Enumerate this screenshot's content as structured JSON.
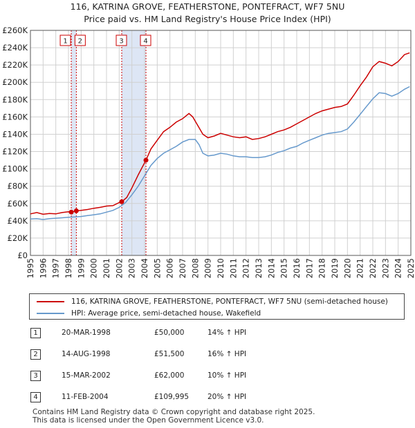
{
  "title_line1": "116, KATRINA GROVE, FEATHERSTONE, PONTEFRACT, WF7 5NU",
  "title_line2": "Price paid vs. HM Land Registry's House Price Index (HPI)",
  "colors": {
    "property": "#cc0000",
    "hpi": "#6699cc",
    "shade": "#dde6f5",
    "marker_line": "#cc0000"
  },
  "chart_data": {
    "type": "line",
    "xlim": [
      1995,
      2025
    ],
    "ylim": [
      0,
      260000
    ],
    "y_ticks": [
      {
        "value": 0,
        "label": "£0"
      },
      {
        "value": 20000,
        "label": "£20K"
      },
      {
        "value": 40000,
        "label": "£40K"
      },
      {
        "value": 60000,
        "label": "£60K"
      },
      {
        "value": 80000,
        "label": "£80K"
      },
      {
        "value": 100000,
        "label": "£100K"
      },
      {
        "value": 120000,
        "label": "£120K"
      },
      {
        "value": 140000,
        "label": "£140K"
      },
      {
        "value": 160000,
        "label": "£160K"
      },
      {
        "value": 180000,
        "label": "£180K"
      },
      {
        "value": 200000,
        "label": "£200K"
      },
      {
        "value": 220000,
        "label": "£220K"
      },
      {
        "value": 240000,
        "label": "£240K"
      },
      {
        "value": 260000,
        "label": "£260K"
      }
    ],
    "x_ticks": [
      "1995",
      "1996",
      "1997",
      "1998",
      "1999",
      "2000",
      "2001",
      "2002",
      "2003",
      "2004",
      "2005",
      "2006",
      "2007",
      "2008",
      "2009",
      "2010",
      "2011",
      "2012",
      "2013",
      "2014",
      "2015",
      "2016",
      "2017",
      "2018",
      "2019",
      "2020",
      "2021",
      "2022",
      "2023",
      "2024",
      "2025"
    ],
    "series": [
      {
        "name": "116, KATRINA GROVE, FEATHERSTONE, PONTEFRACT, WF7 5NU (semi-detached house)",
        "color": "#cc0000",
        "points": [
          [
            1995,
            48000
          ],
          [
            1995.5,
            49500
          ],
          [
            1996,
            47500
          ],
          [
            1996.5,
            48500
          ],
          [
            1997,
            48000
          ],
          [
            1997.5,
            49500
          ],
          [
            1998,
            50500
          ],
          [
            1998.22,
            50000
          ],
          [
            1998.62,
            51500
          ],
          [
            1999,
            52000
          ],
          [
            1999.5,
            53000
          ],
          [
            2000,
            54500
          ],
          [
            2000.5,
            55500
          ],
          [
            2001,
            57000
          ],
          [
            2001.5,
            57500
          ],
          [
            2002,
            61000
          ],
          [
            2002.2,
            62000
          ],
          [
            2002.6,
            67000
          ],
          [
            2003,
            78000
          ],
          [
            2003.5,
            93000
          ],
          [
            2004.11,
            109995
          ],
          [
            2004.5,
            123000
          ],
          [
            2005,
            133000
          ],
          [
            2005.5,
            143000
          ],
          [
            2006,
            148000
          ],
          [
            2006.5,
            154000
          ],
          [
            2007,
            158000
          ],
          [
            2007.5,
            164000
          ],
          [
            2007.8,
            160000
          ],
          [
            2008.2,
            150000
          ],
          [
            2008.6,
            140000
          ],
          [
            2009,
            136000
          ],
          [
            2009.5,
            138000
          ],
          [
            2010,
            141000
          ],
          [
            2010.5,
            139000
          ],
          [
            2011,
            137000
          ],
          [
            2011.5,
            136000
          ],
          [
            2012,
            137000
          ],
          [
            2012.5,
            134000
          ],
          [
            2013,
            135000
          ],
          [
            2013.5,
            137000
          ],
          [
            2014,
            140000
          ],
          [
            2014.5,
            143000
          ],
          [
            2015,
            145000
          ],
          [
            2015.5,
            148000
          ],
          [
            2016,
            152000
          ],
          [
            2016.5,
            156000
          ],
          [
            2017,
            160000
          ],
          [
            2017.5,
            164000
          ],
          [
            2018,
            167000
          ],
          [
            2018.5,
            169000
          ],
          [
            2019,
            171000
          ],
          [
            2019.5,
            172000
          ],
          [
            2020,
            175000
          ],
          [
            2020.5,
            185000
          ],
          [
            2021,
            196000
          ],
          [
            2021.5,
            206000
          ],
          [
            2022,
            218000
          ],
          [
            2022.5,
            224000
          ],
          [
            2023,
            222000
          ],
          [
            2023.5,
            219000
          ],
          [
            2024,
            224000
          ],
          [
            2024.5,
            232000
          ],
          [
            2024.9,
            234000
          ]
        ]
      },
      {
        "name": "HPI: Average price, semi-detached house, Wakefield",
        "color": "#6699cc",
        "points": [
          [
            1995,
            42000
          ],
          [
            1995.5,
            42500
          ],
          [
            1996,
            41500
          ],
          [
            1996.5,
            42500
          ],
          [
            1997,
            43000
          ],
          [
            1997.5,
            43500
          ],
          [
            1998,
            44000
          ],
          [
            1998.5,
            44500
          ],
          [
            1999,
            45000
          ],
          [
            1999.5,
            46000
          ],
          [
            2000,
            47000
          ],
          [
            2000.5,
            48000
          ],
          [
            2001,
            50000
          ],
          [
            2001.5,
            52000
          ],
          [
            2002,
            55500
          ],
          [
            2002.5,
            61000
          ],
          [
            2003,
            70000
          ],
          [
            2003.5,
            80000
          ],
          [
            2004,
            92000
          ],
          [
            2004.5,
            104000
          ],
          [
            2005,
            112000
          ],
          [
            2005.5,
            118000
          ],
          [
            2006,
            122000
          ],
          [
            2006.5,
            126000
          ],
          [
            2007,
            131000
          ],
          [
            2007.5,
            134000
          ],
          [
            2008,
            134000
          ],
          [
            2008.3,
            128000
          ],
          [
            2008.6,
            118000
          ],
          [
            2009,
            115000
          ],
          [
            2009.5,
            116000
          ],
          [
            2010,
            118000
          ],
          [
            2010.5,
            117000
          ],
          [
            2011,
            115000
          ],
          [
            2011.5,
            114000
          ],
          [
            2012,
            114000
          ],
          [
            2012.5,
            113000
          ],
          [
            2013,
            113000
          ],
          [
            2013.5,
            114000
          ],
          [
            2014,
            116000
          ],
          [
            2014.5,
            119000
          ],
          [
            2015,
            121000
          ],
          [
            2015.5,
            124000
          ],
          [
            2016,
            126000
          ],
          [
            2016.5,
            130000
          ],
          [
            2017,
            133000
          ],
          [
            2017.5,
            136000
          ],
          [
            2018,
            139000
          ],
          [
            2018.5,
            141000
          ],
          [
            2019,
            142000
          ],
          [
            2019.5,
            143000
          ],
          [
            2020,
            146000
          ],
          [
            2020.5,
            154000
          ],
          [
            2021,
            163000
          ],
          [
            2021.5,
            172000
          ],
          [
            2022,
            181000
          ],
          [
            2022.5,
            188000
          ],
          [
            2023,
            187000
          ],
          [
            2023.5,
            184000
          ],
          [
            2024,
            187000
          ],
          [
            2024.5,
            192000
          ],
          [
            2024.9,
            195000
          ]
        ]
      }
    ],
    "sales": [
      {
        "label": "1",
        "x": 1998.22,
        "price": 50000
      },
      {
        "label": "2",
        "x": 1998.62,
        "price": 51500
      },
      {
        "label": "3",
        "x": 2002.2,
        "price": 62000
      },
      {
        "label": "4",
        "x": 2004.11,
        "price": 109995
      }
    ],
    "shaded_ranges": [
      [
        1998.22,
        1998.62
      ],
      [
        2002.2,
        2004.11
      ]
    ]
  },
  "legend": {
    "property_label": "116, KATRINA GROVE, FEATHERSTONE, PONTEFRACT, WF7 5NU (semi-detached house)",
    "hpi_label": "HPI: Average price, semi-detached house, Wakefield"
  },
  "transactions": [
    {
      "num": "1",
      "date": "20-MAR-1998",
      "price": "£50,000",
      "hpi": "14% ↑ HPI"
    },
    {
      "num": "2",
      "date": "14-AUG-1998",
      "price": "£51,500",
      "hpi": "16% ↑ HPI"
    },
    {
      "num": "3",
      "date": "15-MAR-2002",
      "price": "£62,000",
      "hpi": "10% ↑ HPI"
    },
    {
      "num": "4",
      "date": "11-FEB-2004",
      "price": "£109,995",
      "hpi": "20% ↑ HPI"
    }
  ],
  "footer_line1": "Contains HM Land Registry data © Crown copyright and database right 2025.",
  "footer_line2": "This data is licensed under the Open Government Licence v3.0."
}
